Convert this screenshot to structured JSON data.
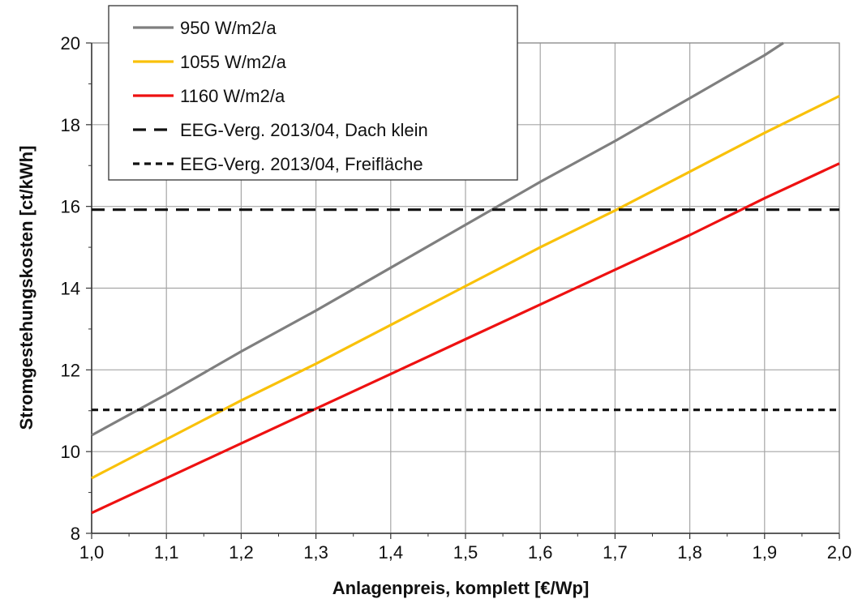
{
  "chart_data": {
    "type": "line",
    "title": "",
    "xlabel": "Anlagenpreis, komplett [€/Wp]",
    "ylabel": "Stromgestehungskosten [ct/kWh]",
    "xlim": [
      1.0,
      2.0
    ],
    "ylim": [
      8,
      20
    ],
    "grid": true,
    "legend_position": "top-left",
    "x_ticks": [
      {
        "value": 1.0,
        "label": "1,0"
      },
      {
        "value": 1.1,
        "label": "1,1"
      },
      {
        "value": 1.2,
        "label": "1,2"
      },
      {
        "value": 1.3,
        "label": "1,3"
      },
      {
        "value": 1.4,
        "label": "1,4"
      },
      {
        "value": 1.5,
        "label": "1,5"
      },
      {
        "value": 1.6,
        "label": "1,6"
      },
      {
        "value": 1.7,
        "label": "1,7"
      },
      {
        "value": 1.8,
        "label": "1,8"
      },
      {
        "value": 1.9,
        "label": "1,9"
      },
      {
        "value": 2.0,
        "label": "2,0"
      }
    ],
    "y_ticks": [
      {
        "value": 8,
        "label": "8"
      },
      {
        "value": 10,
        "label": "10"
      },
      {
        "value": 12,
        "label": "12"
      },
      {
        "value": 14,
        "label": "14"
      },
      {
        "value": 16,
        "label": "16"
      },
      {
        "value": 18,
        "label": "18"
      },
      {
        "value": 20,
        "label": "20"
      }
    ],
    "series": [
      {
        "name": "950 W/m2/a",
        "color": "#7f7f7f",
        "style": "solid",
        "x": [
          1.0,
          1.1,
          1.2,
          1.3,
          1.4,
          1.5,
          1.6,
          1.7,
          1.8,
          1.9,
          1.925
        ],
        "y": [
          10.4,
          11.4,
          12.45,
          13.45,
          14.5,
          15.55,
          16.6,
          17.6,
          18.65,
          19.7,
          20.0
        ]
      },
      {
        "name": "1055 W/m2/a",
        "color": "#f9c10a",
        "style": "solid",
        "x": [
          1.0,
          1.1,
          1.2,
          1.3,
          1.4,
          1.5,
          1.6,
          1.7,
          1.8,
          1.9,
          2.0
        ],
        "y": [
          9.35,
          10.3,
          11.25,
          12.15,
          13.1,
          14.05,
          15.0,
          15.9,
          16.85,
          17.8,
          18.7
        ]
      },
      {
        "name": "1160 W/m2/a",
        "color": "#ee1111",
        "style": "solid",
        "x": [
          1.0,
          1.1,
          1.2,
          1.3,
          1.4,
          1.5,
          1.6,
          1.7,
          1.8,
          1.9,
          2.0
        ],
        "y": [
          8.5,
          9.35,
          10.2,
          11.05,
          11.9,
          12.75,
          13.6,
          14.45,
          15.3,
          16.2,
          17.05
        ]
      },
      {
        "name": "EEG-Verg. 2013/04, Dach klein",
        "color": "#111111",
        "style": "dash-long",
        "x": [
          1.0,
          2.0
        ],
        "y": [
          15.92,
          15.92
        ]
      },
      {
        "name": "EEG-Verg. 2013/04, Freifläche",
        "color": "#111111",
        "style": "dash-short",
        "x": [
          1.0,
          2.0
        ],
        "y": [
          11.02,
          11.02
        ]
      }
    ]
  }
}
